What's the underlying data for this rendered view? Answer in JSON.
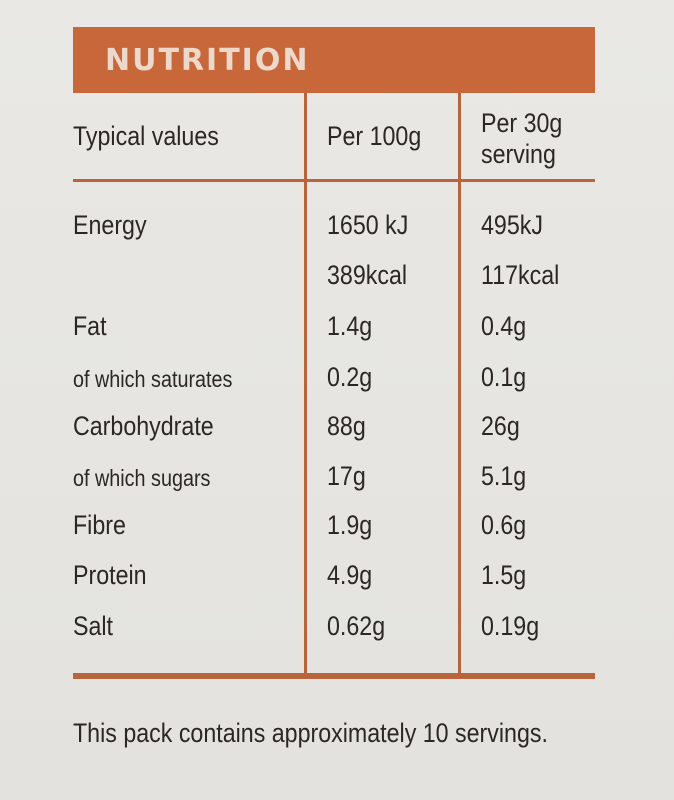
{
  "header": {
    "title": "NUTRITION"
  },
  "columns": {
    "label": "Typical values",
    "per_100g": "Per 100g",
    "per_serving_line1": "Per 30g",
    "per_serving_line2": "serving"
  },
  "rows": [
    {
      "label": "Energy",
      "per_100g": "1650 kJ",
      "per_serving": "495kJ"
    },
    {
      "label": "",
      "per_100g": "389kcal",
      "per_serving": "117kcal"
    },
    {
      "label": "Fat",
      "per_100g": "1.4g",
      "per_serving": "0.4g"
    },
    {
      "label": "of which saturates",
      "per_100g": "0.2g",
      "per_serving": "0.1g"
    },
    {
      "label": "Carbohydrate",
      "per_100g": "88g",
      "per_serving": "26g"
    },
    {
      "label": "of which sugars",
      "per_100g": "17g",
      "per_serving": "5.1g"
    },
    {
      "label": "Fibre",
      "per_100g": "1.9g",
      "per_serving": "0.6g"
    },
    {
      "label": "Protein",
      "per_100g": "4.9g",
      "per_serving": "1.5g"
    },
    {
      "label": "Salt",
      "per_100g": "0.62g",
      "per_serving": "0.19g"
    }
  ],
  "footnote": "This pack contains approximately 10 servings.",
  "colors": {
    "accent": "#c8683a",
    "text": "#2a2724",
    "background": "#e7e6e2"
  }
}
